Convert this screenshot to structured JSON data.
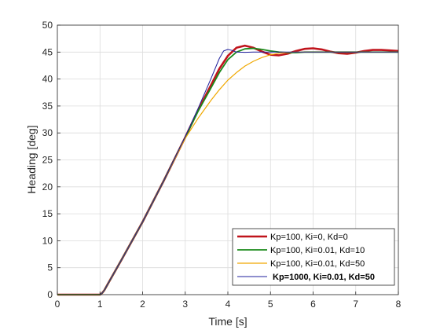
{
  "chart_data": {
    "type": "line",
    "title": "",
    "xlabel": "Time [s]",
    "ylabel": "Heading [deg]",
    "xlim": [
      0,
      8
    ],
    "ylim": [
      0,
      50
    ],
    "xticks": [
      "0",
      "1",
      "2",
      "3",
      "4",
      "5",
      "6",
      "7",
      "8"
    ],
    "yticks": [
      "0",
      "5",
      "10",
      "15",
      "20",
      "25",
      "30",
      "35",
      "40",
      "45",
      "50"
    ],
    "grid": true,
    "legend_position": "bottom-right",
    "series": [
      {
        "name": "Kp=100, Ki=0, Kd=0",
        "color": "#c0141c",
        "bold": false,
        "x": [
          0,
          1.0,
          1.05,
          1.1,
          1.2,
          1.5,
          2.0,
          2.5,
          3.0,
          3.3,
          3.6,
          3.8,
          4.0,
          4.2,
          4.4,
          4.6,
          4.8,
          5.0,
          5.2,
          5.4,
          5.6,
          5.8,
          6.0,
          6.2,
          6.4,
          6.6,
          6.8,
          7.0,
          7.2,
          7.4,
          7.6,
          7.8,
          8.0
        ],
        "y": [
          0,
          0,
          0.3,
          0.8,
          2.2,
          6.4,
          13.5,
          21.2,
          29.2,
          34.2,
          38.8,
          41.9,
          44.3,
          45.8,
          46.2,
          45.8,
          45.1,
          44.5,
          44.4,
          44.7,
          45.2,
          45.6,
          45.7,
          45.5,
          45.1,
          44.8,
          44.7,
          44.9,
          45.2,
          45.4,
          45.4,
          45.3,
          45.2
        ]
      },
      {
        "name": "Kp=100, Ki=0.01, Kd=10",
        "color": "#1a8a1a",
        "bold": false,
        "x": [
          0,
          1.0,
          1.05,
          1.1,
          1.2,
          1.5,
          2.0,
          2.5,
          3.0,
          3.3,
          3.6,
          3.8,
          4.0,
          4.2,
          4.4,
          4.6,
          4.8,
          5.0,
          5.2,
          5.4,
          5.6,
          5.8,
          6.0,
          6.5,
          7.0,
          7.5,
          8.0
        ],
        "y": [
          0,
          0,
          0.3,
          0.8,
          2.2,
          6.4,
          13.5,
          21.2,
          29.2,
          34.0,
          38.3,
          41.2,
          43.6,
          45.0,
          45.6,
          45.7,
          45.5,
          45.2,
          45.0,
          44.9,
          44.9,
          45.0,
          45.0,
          45.0,
          45.0,
          45.0,
          45.0
        ]
      },
      {
        "name": "Kp=100, Ki=0.01, Kd=50",
        "color": "#f0a800",
        "bold": false,
        "x": [
          0,
          1.0,
          1.05,
          1.1,
          1.2,
          1.5,
          2.0,
          2.5,
          3.0,
          3.3,
          3.6,
          3.8,
          4.0,
          4.2,
          4.4,
          4.6,
          4.8,
          5.0,
          5.2,
          5.4,
          5.6,
          5.8,
          6.0,
          6.5,
          7.0,
          7.5,
          8.0
        ],
        "y": [
          0,
          0,
          0.3,
          0.8,
          2.2,
          6.4,
          13.5,
          21.2,
          29.0,
          32.7,
          36.0,
          38.0,
          39.8,
          41.2,
          42.4,
          43.3,
          44.0,
          44.5,
          44.8,
          44.95,
          45.0,
          45.0,
          45.0,
          45.0,
          45.0,
          45.0,
          45.0
        ]
      },
      {
        "name": "Kp=1000, Ki=0.01, Kd=50",
        "color": "#1f1f9c",
        "bold": true,
        "x": [
          0,
          1.0,
          1.05,
          1.1,
          1.2,
          1.5,
          2.0,
          2.5,
          3.0,
          3.3,
          3.6,
          3.8,
          3.9,
          4.0,
          4.1,
          4.2,
          4.4,
          4.6,
          5.0,
          5.5,
          6.0,
          7.0,
          8.0
        ],
        "y": [
          0,
          0,
          0.3,
          0.8,
          2.2,
          6.4,
          13.5,
          21.2,
          29.3,
          34.5,
          40.0,
          43.8,
          45.2,
          45.5,
          45.3,
          45.0,
          44.95,
          45.0,
          45.0,
          45.0,
          45.0,
          45.0,
          45.0
        ]
      }
    ]
  }
}
